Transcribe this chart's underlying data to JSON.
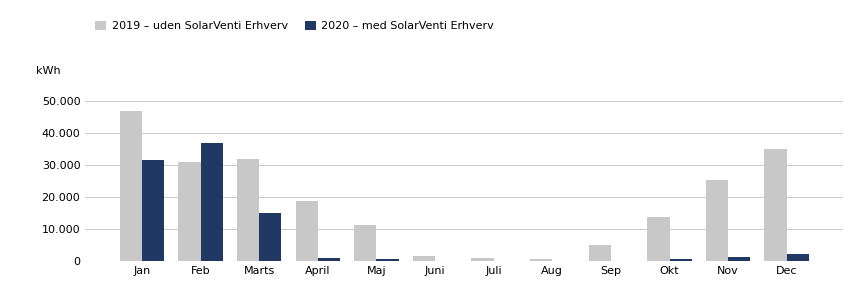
{
  "months": [
    "Jan",
    "Feb",
    "Marts",
    "April",
    "Maj",
    "Juni",
    "Juli",
    "Aug",
    "Sep",
    "Okt",
    "Nov",
    "Dec"
  ],
  "values_2019": [
    47000,
    31000,
    32000,
    19000,
    11500,
    1800,
    1200,
    900,
    5000,
    14000,
    25500,
    35000
  ],
  "values_2020": [
    31500,
    37000,
    15000,
    1000,
    900,
    0,
    0,
    0,
    0,
    900,
    1500,
    2200
  ],
  "color_2019": "#c8c8c8",
  "color_2020": "#1f3864",
  "legend_label_2019": "2019 – uden SolarVenti Erhverv",
  "legend_label_2020": "2020 – med SolarVenti Erhverv",
  "ylabel": "kWh",
  "ylim": [
    0,
    55000
  ],
  "yticks": [
    0,
    10000,
    20000,
    30000,
    40000,
    50000
  ],
  "bar_width": 0.38,
  "background_color": "#ffffff",
  "grid_color": "#cccccc"
}
